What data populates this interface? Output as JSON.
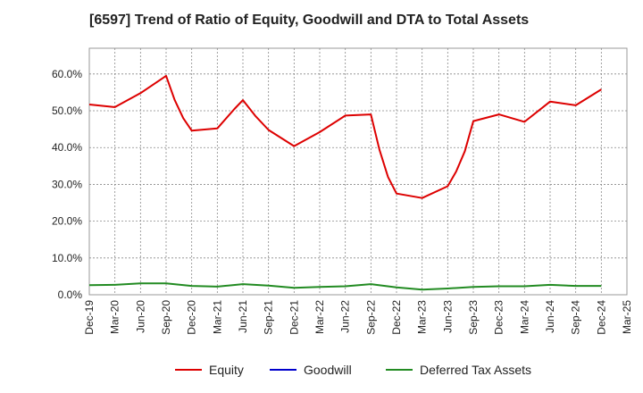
{
  "chart_data": {
    "type": "line",
    "title": "[6597]  Trend of Ratio of Equity, Goodwill and DTA to Total Assets",
    "xlabel": "",
    "ylabel": "",
    "x_ticks": [
      "Dec-19",
      "Mar-20",
      "Jun-20",
      "Sep-20",
      "Dec-20",
      "Mar-21",
      "Jun-21",
      "Sep-21",
      "Dec-21",
      "Mar-22",
      "Jun-22",
      "Sep-22",
      "Dec-22",
      "Mar-23",
      "Jun-23",
      "Sep-23",
      "Dec-23",
      "Mar-24",
      "Jun-24",
      "Sep-24",
      "Dec-24",
      "Mar-25"
    ],
    "y_ticks": [
      "0.0%",
      "10.0%",
      "20.0%",
      "30.0%",
      "40.0%",
      "50.0%",
      "60.0%"
    ],
    "ylim": [
      0,
      67
    ],
    "grid": true,
    "legend_position": "bottom",
    "series": [
      {
        "name": "Equity",
        "color": "#dd0000",
        "points": [
          [
            0,
            51.7
          ],
          [
            1,
            51.0
          ],
          [
            2,
            54.8
          ],
          [
            3,
            59.5
          ],
          [
            3.33,
            53.0
          ],
          [
            3.67,
            48.0
          ],
          [
            4,
            44.6
          ],
          [
            5,
            45.2
          ],
          [
            5.67,
            50.5
          ],
          [
            6,
            52.9
          ],
          [
            6.5,
            48.5
          ],
          [
            7,
            44.8
          ],
          [
            8,
            40.4
          ],
          [
            9,
            44.2
          ],
          [
            10,
            48.7
          ],
          [
            11,
            49.0
          ],
          [
            11.33,
            39.5
          ],
          [
            11.67,
            32.0
          ],
          [
            12,
            27.5
          ],
          [
            13,
            26.3
          ],
          [
            14,
            29.5
          ],
          [
            14.33,
            33.5
          ],
          [
            14.67,
            39.0
          ],
          [
            15,
            47.2
          ],
          [
            16,
            49.0
          ],
          [
            17,
            47.0
          ],
          [
            18,
            52.5
          ],
          [
            19,
            51.5
          ],
          [
            20,
            55.8
          ]
        ]
      },
      {
        "name": "Goodwill",
        "color": "#0000cc",
        "points": []
      },
      {
        "name": "Deferred Tax Assets",
        "color": "#228b22",
        "points": [
          [
            0,
            2.6
          ],
          [
            1,
            2.7
          ],
          [
            2,
            3.1
          ],
          [
            3,
            3.1
          ],
          [
            4,
            2.4
          ],
          [
            5,
            2.2
          ],
          [
            6,
            2.9
          ],
          [
            7,
            2.5
          ],
          [
            8,
            1.9
          ],
          [
            9,
            2.1
          ],
          [
            10,
            2.3
          ],
          [
            11,
            2.9
          ],
          [
            12,
            2.0
          ],
          [
            13,
            1.4
          ],
          [
            14,
            1.7
          ],
          [
            15,
            2.1
          ],
          [
            16,
            2.3
          ],
          [
            17,
            2.3
          ],
          [
            18,
            2.7
          ],
          [
            19,
            2.4
          ],
          [
            20,
            2.4
          ]
        ]
      }
    ]
  }
}
